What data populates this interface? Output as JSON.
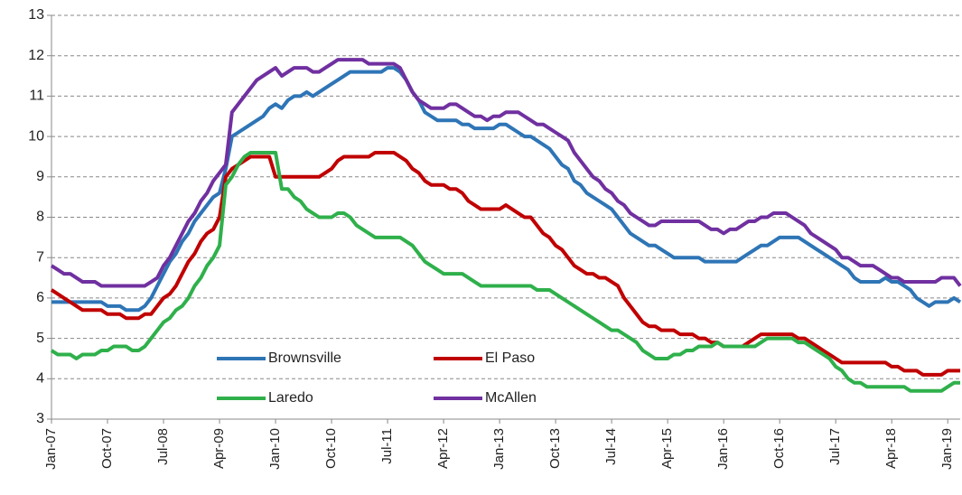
{
  "chart_data": {
    "type": "line",
    "categories": [
      "Jan-07",
      null,
      null,
      null,
      null,
      null,
      null,
      null,
      null,
      "Oct-07",
      null,
      null,
      null,
      null,
      null,
      null,
      null,
      null,
      "Jul-08",
      null,
      null,
      null,
      null,
      null,
      null,
      null,
      null,
      "Apr-09",
      null,
      null,
      null,
      null,
      null,
      null,
      null,
      null,
      "Jan-10",
      null,
      null,
      null,
      null,
      null,
      null,
      null,
      null,
      "Oct-10",
      null,
      null,
      null,
      null,
      null,
      null,
      null,
      null,
      "Jul-11",
      null,
      null,
      null,
      null,
      null,
      null,
      null,
      null,
      "Apr-12",
      null,
      null,
      null,
      null,
      null,
      null,
      null,
      null,
      "Jan-13",
      null,
      null,
      null,
      null,
      null,
      null,
      null,
      null,
      "Oct-13",
      null,
      null,
      null,
      null,
      null,
      null,
      null,
      null,
      "Jul-14",
      null,
      null,
      null,
      null,
      null,
      null,
      null,
      null,
      "Apr-15",
      null,
      null,
      null,
      null,
      null,
      null,
      null,
      null,
      "Jan-16",
      null,
      null,
      null,
      null,
      null,
      null,
      null,
      null,
      "Oct-16",
      null,
      null,
      null,
      null,
      null,
      null,
      null,
      null,
      "Jul-17",
      null,
      null,
      null,
      null,
      null,
      null,
      null,
      null,
      "Apr-18",
      null,
      null,
      null,
      null,
      null,
      null,
      null,
      null,
      "Jan-19",
      null,
      null
    ],
    "series": [
      {
        "name": "Brownsville",
        "color": "#2E75B6",
        "values": [
          5.9,
          5.9,
          5.9,
          5.9,
          5.9,
          5.9,
          5.9,
          5.9,
          5.9,
          5.8,
          5.8,
          5.8,
          5.7,
          5.7,
          5.7,
          5.8,
          6.0,
          6.3,
          6.6,
          6.9,
          7.1,
          7.4,
          7.6,
          7.9,
          8.1,
          8.3,
          8.5,
          8.6,
          9.2,
          10.0,
          10.1,
          10.2,
          10.3,
          10.4,
          10.5,
          10.7,
          10.8,
          10.7,
          10.9,
          11.0,
          11.0,
          11.1,
          11.0,
          11.1,
          11.2,
          11.3,
          11.4,
          11.5,
          11.6,
          11.6,
          11.6,
          11.6,
          11.6,
          11.6,
          11.7,
          11.7,
          11.6,
          11.4,
          11.1,
          10.9,
          10.6,
          10.5,
          10.4,
          10.4,
          10.4,
          10.4,
          10.3,
          10.3,
          10.2,
          10.2,
          10.2,
          10.2,
          10.3,
          10.3,
          10.2,
          10.1,
          10.0,
          10.0,
          9.9,
          9.8,
          9.7,
          9.5,
          9.3,
          9.2,
          8.9,
          8.8,
          8.6,
          8.5,
          8.4,
          8.3,
          8.2,
          8.0,
          7.8,
          7.6,
          7.5,
          7.4,
          7.3,
          7.3,
          7.2,
          7.1,
          7.0,
          7.0,
          7.0,
          7.0,
          7.0,
          6.9,
          6.9,
          6.9,
          6.9,
          6.9,
          6.9,
          7.0,
          7.1,
          7.2,
          7.3,
          7.3,
          7.4,
          7.5,
          7.5,
          7.5,
          7.5,
          7.4,
          7.3,
          7.2,
          7.1,
          7.0,
          6.9,
          6.8,
          6.7,
          6.5,
          6.4,
          6.4,
          6.4,
          6.4,
          6.5,
          6.4,
          6.4,
          6.3,
          6.2,
          6.0,
          5.9,
          5.8,
          5.9,
          5.9,
          5.9,
          6.0,
          5.9
        ]
      },
      {
        "name": "El Paso",
        "color": "#C00000",
        "values": [
          6.2,
          6.1,
          6.0,
          5.9,
          5.8,
          5.7,
          5.7,
          5.7,
          5.7,
          5.6,
          5.6,
          5.6,
          5.5,
          5.5,
          5.5,
          5.6,
          5.6,
          5.8,
          6.0,
          6.1,
          6.3,
          6.6,
          6.9,
          7.1,
          7.4,
          7.6,
          7.7,
          8.0,
          9.0,
          9.2,
          9.3,
          9.4,
          9.5,
          9.5,
          9.5,
          9.5,
          9.0,
          9.0,
          9.0,
          9.0,
          9.0,
          9.0,
          9.0,
          9.0,
          9.1,
          9.2,
          9.4,
          9.5,
          9.5,
          9.5,
          9.5,
          9.5,
          9.6,
          9.6,
          9.6,
          9.6,
          9.5,
          9.4,
          9.2,
          9.1,
          8.9,
          8.8,
          8.8,
          8.8,
          8.7,
          8.7,
          8.6,
          8.4,
          8.3,
          8.2,
          8.2,
          8.2,
          8.2,
          8.3,
          8.2,
          8.1,
          8.0,
          8.0,
          7.8,
          7.6,
          7.5,
          7.3,
          7.2,
          7.0,
          6.8,
          6.7,
          6.6,
          6.6,
          6.5,
          6.5,
          6.4,
          6.3,
          6.0,
          5.8,
          5.6,
          5.4,
          5.3,
          5.3,
          5.2,
          5.2,
          5.2,
          5.1,
          5.1,
          5.1,
          5.0,
          5.0,
          4.9,
          4.9,
          4.8,
          4.8,
          4.8,
          4.8,
          4.9,
          5.0,
          5.1,
          5.1,
          5.1,
          5.1,
          5.1,
          5.1,
          5.0,
          5.0,
          4.9,
          4.8,
          4.7,
          4.6,
          4.5,
          4.4,
          4.4,
          4.4,
          4.4,
          4.4,
          4.4,
          4.4,
          4.4,
          4.3,
          4.3,
          4.2,
          4.2,
          4.2,
          4.1,
          4.1,
          4.1,
          4.1,
          4.2,
          4.2,
          4.2
        ]
      },
      {
        "name": "Laredo",
        "color": "#2FB04B",
        "values": [
          4.7,
          4.6,
          4.6,
          4.6,
          4.5,
          4.6,
          4.6,
          4.6,
          4.7,
          4.7,
          4.8,
          4.8,
          4.8,
          4.7,
          4.7,
          4.8,
          5.0,
          5.2,
          5.4,
          5.5,
          5.7,
          5.8,
          6.0,
          6.3,
          6.5,
          6.8,
          7.0,
          7.3,
          8.8,
          9.0,
          9.3,
          9.5,
          9.6,
          9.6,
          9.6,
          9.6,
          9.6,
          8.7,
          8.7,
          8.5,
          8.4,
          8.2,
          8.1,
          8.0,
          8.0,
          8.0,
          8.1,
          8.1,
          8.0,
          7.8,
          7.7,
          7.6,
          7.5,
          7.5,
          7.5,
          7.5,
          7.5,
          7.4,
          7.3,
          7.1,
          6.9,
          6.8,
          6.7,
          6.6,
          6.6,
          6.6,
          6.6,
          6.5,
          6.4,
          6.3,
          6.3,
          6.3,
          6.3,
          6.3,
          6.3,
          6.3,
          6.3,
          6.3,
          6.2,
          6.2,
          6.2,
          6.1,
          6.0,
          5.9,
          5.8,
          5.7,
          5.6,
          5.5,
          5.4,
          5.3,
          5.2,
          5.2,
          5.1,
          5.0,
          4.9,
          4.7,
          4.6,
          4.5,
          4.5,
          4.5,
          4.6,
          4.6,
          4.7,
          4.7,
          4.8,
          4.8,
          4.8,
          4.9,
          4.8,
          4.8,
          4.8,
          4.8,
          4.8,
          4.8,
          4.9,
          5.0,
          5.0,
          5.0,
          5.0,
          5.0,
          4.9,
          4.9,
          4.8,
          4.7,
          4.6,
          4.5,
          4.3,
          4.2,
          4.0,
          3.9,
          3.9,
          3.8,
          3.8,
          3.8,
          3.8,
          3.8,
          3.8,
          3.8,
          3.7,
          3.7,
          3.7,
          3.7,
          3.7,
          3.7,
          3.8,
          3.9,
          3.9
        ]
      },
      {
        "name": "McAllen",
        "color": "#7030A0",
        "values": [
          6.8,
          6.7,
          6.6,
          6.6,
          6.5,
          6.4,
          6.4,
          6.4,
          6.3,
          6.3,
          6.3,
          6.3,
          6.3,
          6.3,
          6.3,
          6.3,
          6.4,
          6.5,
          6.8,
          7.0,
          7.3,
          7.6,
          7.9,
          8.1,
          8.4,
          8.6,
          8.9,
          9.1,
          9.3,
          10.6,
          10.8,
          11.0,
          11.2,
          11.4,
          11.5,
          11.6,
          11.7,
          11.5,
          11.6,
          11.7,
          11.7,
          11.7,
          11.6,
          11.6,
          11.7,
          11.8,
          11.9,
          11.9,
          11.9,
          11.9,
          11.9,
          11.8,
          11.8,
          11.8,
          11.8,
          11.8,
          11.7,
          11.4,
          11.1,
          10.9,
          10.8,
          10.7,
          10.7,
          10.7,
          10.8,
          10.8,
          10.7,
          10.6,
          10.5,
          10.5,
          10.4,
          10.5,
          10.5,
          10.6,
          10.6,
          10.6,
          10.5,
          10.4,
          10.3,
          10.3,
          10.2,
          10.1,
          10.0,
          9.9,
          9.6,
          9.4,
          9.2,
          9.0,
          8.9,
          8.7,
          8.6,
          8.4,
          8.3,
          8.1,
          8.0,
          7.9,
          7.8,
          7.8,
          7.9,
          7.9,
          7.9,
          7.9,
          7.9,
          7.9,
          7.9,
          7.8,
          7.7,
          7.7,
          7.6,
          7.7,
          7.7,
          7.8,
          7.9,
          7.9,
          8.0,
          8.0,
          8.1,
          8.1,
          8.1,
          8.0,
          7.9,
          7.8,
          7.6,
          7.5,
          7.4,
          7.3,
          7.2,
          7.0,
          7.0,
          6.9,
          6.8,
          6.8,
          6.8,
          6.7,
          6.6,
          6.5,
          6.5,
          6.4,
          6.4,
          6.4,
          6.4,
          6.4,
          6.4,
          6.5,
          6.5,
          6.5,
          6.3
        ]
      }
    ],
    "ylim": [
      3,
      13
    ],
    "yticks": [
      3,
      4,
      5,
      6,
      7,
      8,
      9,
      10,
      11,
      12,
      13
    ],
    "grid": true,
    "legend": "lower-center"
  }
}
